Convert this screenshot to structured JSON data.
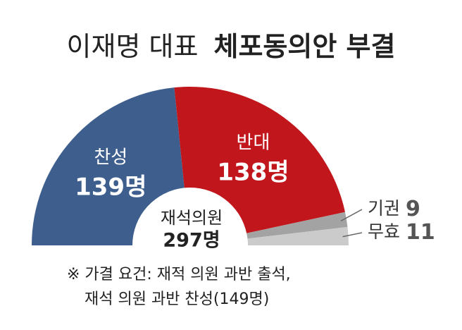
{
  "chart_data": {
    "type": "semi-donut",
    "title": "이재명 대표",
    "title_bold": "체포동의안 부결",
    "categories": [
      "찬성",
      "반대",
      "기권",
      "무효"
    ],
    "values": [
      139,
      138,
      9,
      11
    ],
    "value_labels": [
      "139명",
      "138명",
      "9",
      "11"
    ],
    "colors": [
      "#3e5f8e",
      "#c1161c",
      "#a3a3a3",
      "#cbcbcb"
    ],
    "center": {
      "title": "재석의원",
      "value": 297,
      "value_label": "297명"
    },
    "notes": [
      "※ 가결 요건: 재적 의원 과반 출석,",
      "재석 의원 과반 찬성(149명)"
    ]
  }
}
